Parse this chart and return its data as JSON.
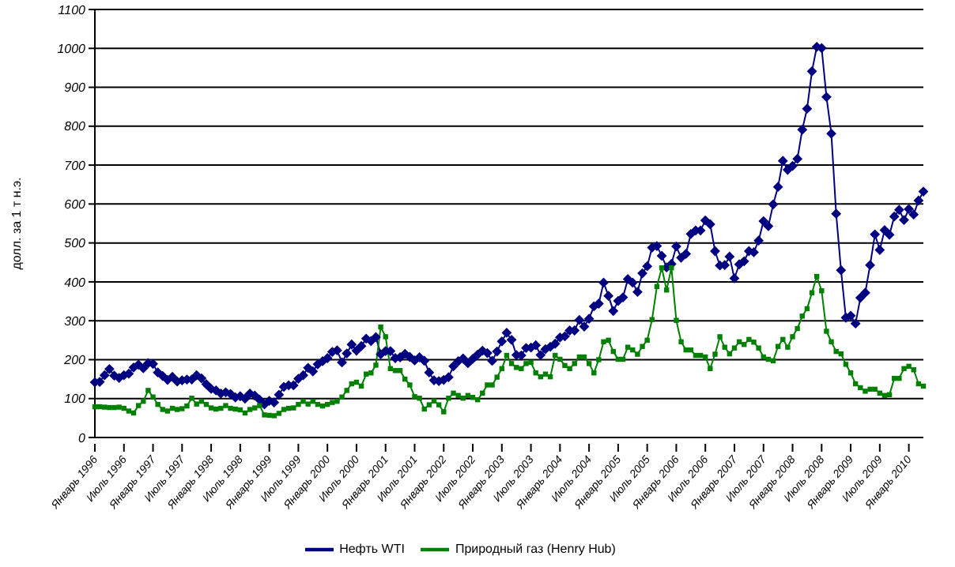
{
  "chart_data": {
    "type": "line",
    "ylabel": "долл. за 1 т н.э.",
    "categories": [
      "Январь 1996",
      null,
      null,
      null,
      null,
      null,
      "Июль 1996",
      null,
      null,
      null,
      null,
      null,
      "Январь 1997",
      null,
      null,
      null,
      null,
      null,
      "Июль 1997",
      null,
      null,
      null,
      null,
      null,
      "Январь 1998",
      null,
      null,
      null,
      null,
      null,
      "Июль 1998",
      null,
      null,
      null,
      null,
      null,
      "Январь 1999",
      null,
      null,
      null,
      null,
      null,
      "Июль 1999",
      null,
      null,
      null,
      null,
      null,
      "Январь 2000",
      null,
      null,
      null,
      null,
      null,
      "Июль 2000",
      null,
      null,
      null,
      null,
      null,
      "Январь 2001",
      null,
      null,
      null,
      null,
      null,
      "Июль 2001",
      null,
      null,
      null,
      null,
      null,
      "Январь 2002",
      null,
      null,
      null,
      null,
      null,
      "Июль 2002",
      null,
      null,
      null,
      null,
      null,
      "Январь 2003",
      null,
      null,
      null,
      null,
      null,
      "Июль 2003",
      null,
      null,
      null,
      null,
      null,
      "Январь 2004",
      null,
      null,
      null,
      null,
      null,
      "Июль 2004",
      null,
      null,
      null,
      null,
      null,
      "Январь 2005",
      null,
      null,
      null,
      null,
      null,
      "Июль 2005",
      null,
      null,
      null,
      null,
      null,
      "Январь 2006",
      null,
      null,
      null,
      null,
      null,
      "Июль 2006",
      null,
      null,
      null,
      null,
      null,
      "Январь 2007",
      null,
      null,
      null,
      null,
      null,
      "Июль 2007",
      null,
      null,
      null,
      null,
      null,
      "Январь 2008",
      null,
      null,
      null,
      null,
      null,
      "Июль 2008",
      null,
      null,
      null,
      null,
      null,
      "Январь 2009",
      null,
      null,
      null,
      null,
      null,
      "Июль 2009",
      null,
      null,
      null,
      null,
      null,
      "Январь 2010",
      null,
      null,
      null
    ],
    "series": [
      {
        "name": "Нефть WTI",
        "color": "#000080",
        "marker": "diamond",
        "values": [
          142,
          143,
          160,
          176,
          159,
          153,
          160,
          164,
          180,
          187,
          178,
          191,
          189,
          167,
          158,
          148,
          156,
          144,
          147,
          149,
          149,
          160,
          152,
          137,
          125,
          121,
          113,
          116,
          112,
          103,
          106,
          100,
          113,
          108,
          97,
          85,
          94,
          90,
          110,
          130,
          134,
          134,
          151,
          160,
          179,
          170,
          188,
          196,
          204,
          220,
          224,
          193,
          216,
          239,
          223,
          235,
          254,
          248,
          258,
          214,
          222,
          222,
          204,
          206,
          215,
          207,
          198,
          206,
          197,
          167,
          147,
          145,
          148,
          155,
          183,
          196,
          203,
          191,
          202,
          213,
          223,
          217,
          197,
          221,
          247,
          269,
          251,
          212,
          211,
          230,
          231,
          237,
          212,
          227,
          233,
          241,
          257,
          260,
          275,
          275,
          302,
          285,
          305,
          337,
          344,
          398,
          364,
          325,
          351,
          360,
          407,
          398,
          374,
          422,
          440,
          488,
          492,
          467,
          437,
          446,
          491,
          462,
          472,
          523,
          532,
          532,
          558,
          548,
          479,
          442,
          443,
          465,
          409,
          445,
          453,
          479,
          476,
          506,
          556,
          543,
          599,
          644,
          711,
          688,
          698,
          716,
          791,
          845,
          941,
          1004,
          1001,
          875,
          781,
          575,
          430,
          308,
          313,
          293,
          359,
          372,
          443,
          522,
          482,
          533,
          521,
          568,
          585,
          559,
          587,
          573,
          609,
          632
        ]
      },
      {
        "name": "Природный газ (Henry Hub)",
        "color": "#008000",
        "marker": "square",
        "values": [
          79,
          79,
          78,
          77,
          77,
          78,
          75,
          68,
          63,
          82,
          93,
          121,
          104,
          85,
          72,
          68,
          75,
          72,
          74,
          81,
          101,
          86,
          93,
          85,
          76,
          73,
          75,
          82,
          75,
          73,
          71,
          63,
          72,
          76,
          82,
          58,
          57,
          56,
          62,
          72,
          75,
          76,
          85,
          93,
          86,
          93,
          85,
          81,
          85,
          90,
          93,
          104,
          121,
          138,
          142,
          132,
          163,
          166,
          186,
          284,
          259,
          177,
          172,
          172,
          150,
          135,
          105,
          101,
          73,
          84,
          94,
          84,
          66,
          101,
          114,
          108,
          101,
          108,
          103,
          97,
          114,
          135,
          135,
          155,
          177,
          211,
          190,
          180,
          177,
          190,
          193,
          166,
          156,
          163,
          156,
          211,
          201,
          185,
          177,
          190,
          207,
          207,
          190,
          166,
          200,
          246,
          250,
          221,
          201,
          201,
          232,
          225,
          214,
          234,
          250,
          303,
          388,
          436,
          379,
          436,
          301,
          246,
          225,
          225,
          211,
          211,
          207,
          177,
          214,
          259,
          232,
          215,
          230,
          246,
          239,
          252,
          245,
          230,
          207,
          201,
          197,
          234,
          252,
          232,
          259,
          280,
          312,
          331,
          372,
          414,
          377,
          273,
          246,
          221,
          215,
          188,
          166,
          138,
          128,
          119,
          124,
          124,
          114,
          108,
          110,
          152,
          152,
          177,
          183,
          174,
          138,
          132
        ]
      }
    ],
    "ylim": [
      0,
      1100
    ],
    "yticks": [
      0,
      100,
      200,
      300,
      400,
      500,
      600,
      700,
      800,
      900,
      1000,
      1100
    ],
    "grid": "y",
    "legend": "bottom",
    "line_style": "solid"
  }
}
